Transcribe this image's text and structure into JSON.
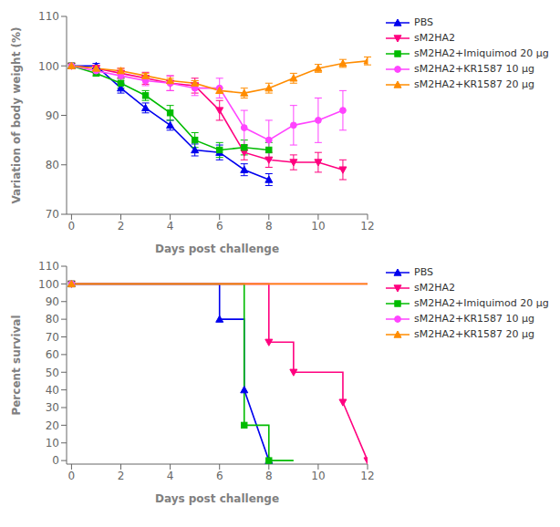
{
  "chart_data": [
    {
      "type": "line",
      "xlabel": "Days post challenge",
      "ylabel": "Variation of body weight (%)",
      "xlim": [
        -0.2,
        12
      ],
      "ylim": [
        70,
        110
      ],
      "xticks": [
        0,
        2,
        4,
        6,
        8,
        10,
        12
      ],
      "yticks": [
        70,
        80,
        90,
        100,
        110
      ],
      "legend": "right",
      "series": [
        {
          "name": "PBS",
          "color": "#0000EE",
          "marker": "^",
          "x": [
            0,
            1,
            2,
            3,
            4,
            5,
            6,
            7,
            8
          ],
          "values": [
            100,
            100,
            95.5,
            91.5,
            88,
            83,
            82.5,
            79,
            77
          ],
          "yerr": [
            0,
            0.5,
            1.0,
            1.0,
            1.0,
            1.2,
            1.5,
            1.2,
            1.2
          ]
        },
        {
          "name": "sM2HA2",
          "color": "#FF007F",
          "marker": "v",
          "x": [
            0,
            1,
            2,
            3,
            4,
            5,
            6,
            7,
            8,
            9,
            10,
            11
          ],
          "values": [
            100,
            99.5,
            98.5,
            97.5,
            96.5,
            96.0,
            91.0,
            82.5,
            81.0,
            80.5,
            80.5,
            79.0
          ],
          "yerr": [
            0,
            0.5,
            1.0,
            1.2,
            1.5,
            1.5,
            2.0,
            1.5,
            1.5,
            1.5,
            2.0,
            2.0
          ]
        },
        {
          "name": "sM2HA2+Imiquimod 20 μg",
          "color": "#00BB00",
          "marker": "s",
          "x": [
            0,
            1,
            2,
            3,
            4,
            5,
            6,
            7,
            8
          ],
          "values": [
            100,
            98.5,
            96.5,
            94.0,
            90.5,
            85.0,
            83.0,
            83.5,
            83.0
          ],
          "yerr": [
            0,
            0.5,
            1.0,
            1.0,
            1.5,
            1.5,
            1.5,
            1.5,
            1.5
          ]
        },
        {
          "name": "sM2HA2+KR1587 10 μg",
          "color": "#FF44FF",
          "marker": "o",
          "x": [
            0,
            1,
            2,
            3,
            4,
            5,
            6,
            7,
            8,
            9,
            10,
            11
          ],
          "values": [
            100,
            99.0,
            98.0,
            97.0,
            96.5,
            95.5,
            95.5,
            87.5,
            85.0,
            88.0,
            89.0,
            91.0
          ],
          "yerr": [
            0,
            0.5,
            1.0,
            1.0,
            1.5,
            1.5,
            2.0,
            3.5,
            4.0,
            4.0,
            4.5,
            4.0
          ]
        },
        {
          "name": "sM2HA2+KR1587 20 μg",
          "color": "#FF8C00",
          "marker": "^",
          "x": [
            0,
            1,
            2,
            3,
            4,
            5,
            6,
            7,
            8,
            9,
            10,
            11,
            12
          ],
          "values": [
            100,
            99.5,
            99.0,
            98.0,
            97.0,
            96.5,
            95.0,
            94.5,
            95.5,
            97.5,
            99.5,
            100.5,
            101.0
          ],
          "yerr": [
            0,
            0.5,
            0.5,
            0.5,
            0.5,
            0.5,
            0.5,
            1.0,
            1.0,
            1.0,
            0.8,
            0.8,
            0.8
          ]
        }
      ]
    },
    {
      "type": "line",
      "xlabel": "Days post challenge",
      "ylabel": "Percent survival",
      "xlim": [
        -0.2,
        12
      ],
      "ylim": [
        -2,
        110
      ],
      "xticks": [
        0,
        2,
        4,
        6,
        8,
        10,
        12
      ],
      "yticks": [
        0,
        10,
        20,
        30,
        40,
        50,
        60,
        70,
        80,
        90,
        100,
        110
      ],
      "legend": "right",
      "series": [
        {
          "name": "PBS",
          "color": "#0000EE",
          "marker": "^",
          "x": [
            0,
            6,
            6,
            7,
            7,
            8
          ],
          "values": [
            100,
            100,
            80,
            80,
            40,
            0
          ]
        },
        {
          "name": "sM2HA2",
          "color": "#FF007F",
          "marker": "v",
          "x": [
            0,
            8,
            8,
            9,
            9,
            11,
            11,
            12
          ],
          "values": [
            100,
            100,
            67,
            67,
            50,
            50,
            33,
            0
          ]
        },
        {
          "name": "sM2HA2+Imiquimod 20 μg",
          "color": "#00BB00",
          "marker": "s",
          "x": [
            0,
            7,
            7,
            8,
            8,
            9,
            9
          ],
          "values": [
            100,
            100,
            20,
            20,
            0,
            0,
            0
          ]
        },
        {
          "name": "sM2HA2+KR1587 10 μg",
          "color": "#FF44FF",
          "marker": "o",
          "x": [
            0,
            12
          ],
          "values": [
            100,
            100
          ]
        },
        {
          "name": "sM2HA2+KR1587 20 μg",
          "color": "#FF8C00",
          "marker": "^",
          "x": [
            0,
            12
          ],
          "values": [
            100,
            100
          ]
        }
      ]
    }
  ]
}
